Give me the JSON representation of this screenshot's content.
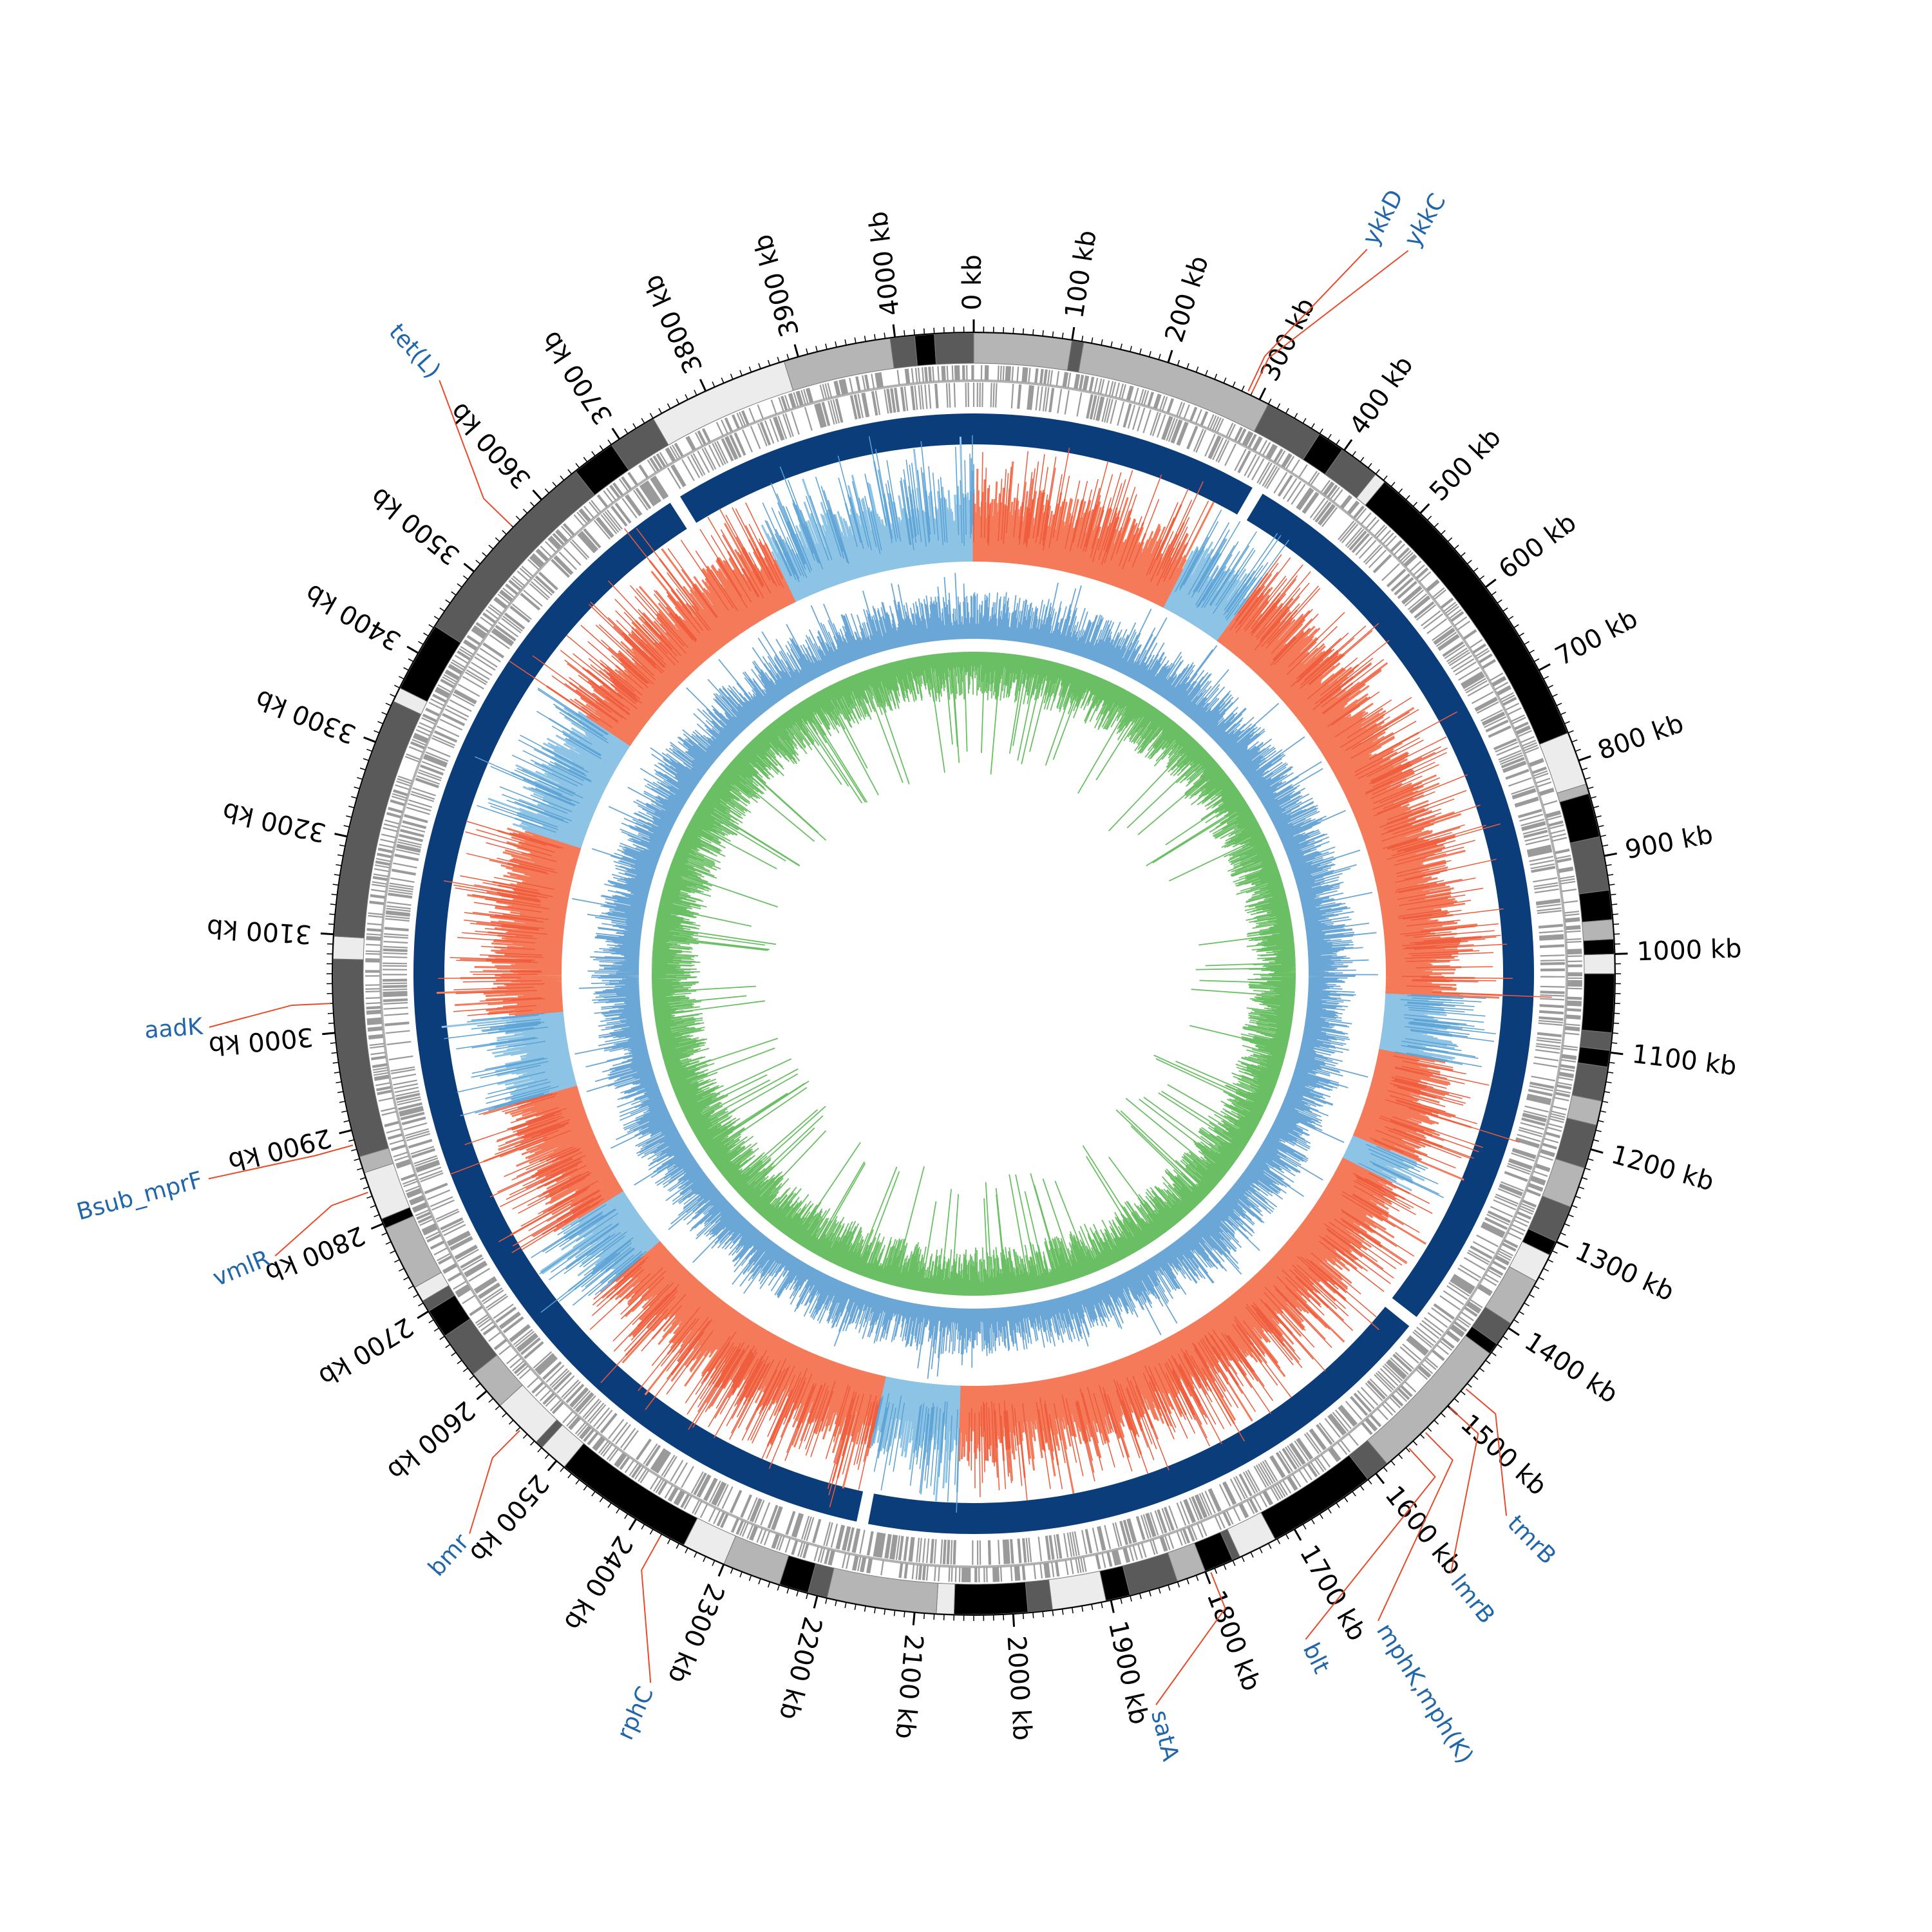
{
  "chart_data": {
    "type": "circular-genome-map",
    "genome_length_kb": 4080,
    "colors": {
      "contig_shades": [
        "#000000",
        "#5a5a5a",
        "#b5b5b5",
        "#ececec"
      ],
      "gene_track": "#9a9a9a",
      "backbone": "#0b3d7a",
      "skew_positive": "#f47a5a",
      "skew_negative": "#8dc4e6",
      "gc_outer": "#6aa6d6",
      "gc_inner": "#6abf64",
      "label_line": "#e84a2a",
      "label_text": "#2266aa",
      "tick": "#000000"
    },
    "tick_labels": [
      "0 kb",
      "100 kb",
      "200 kb",
      "300 kb",
      "400 kb",
      "500 kb",
      "600 kb",
      "700 kb",
      "800 kb",
      "900 kb",
      "1000 kb",
      "1100 kb",
      "1200 kb",
      "1300 kb",
      "1400 kb",
      "1500 kb",
      "1600 kb",
      "1700 kb",
      "1800 kb",
      "1900 kb",
      "2000 kb",
      "2100 kb",
      "2200 kb",
      "2300 kb",
      "2400 kb",
      "2500 kb",
      "2600 kb",
      "2700 kb",
      "2800 kb",
      "2900 kb",
      "3000 kb",
      "3100 kb",
      "3200 kb",
      "3300 kb",
      "3400 kb",
      "3500 kb",
      "3600 kb",
      "3700 kb",
      "3800 kb",
      "3900 kb",
      "4000 kb"
    ],
    "contigs": [
      {
        "start": 0,
        "end": 100,
        "shade": 2
      },
      {
        "start": 100,
        "end": 112,
        "shade": 1
      },
      {
        "start": 112,
        "end": 310,
        "shade": 2
      },
      {
        "start": 310,
        "end": 370,
        "shade": 1
      },
      {
        "start": 370,
        "end": 398,
        "shade": 0
      },
      {
        "start": 398,
        "end": 440,
        "shade": 1
      },
      {
        "start": 440,
        "end": 452,
        "shade": 3
      },
      {
        "start": 452,
        "end": 770,
        "shade": 0
      },
      {
        "start": 770,
        "end": 825,
        "shade": 3
      },
      {
        "start": 825,
        "end": 835,
        "shade": 2
      },
      {
        "start": 835,
        "end": 880,
        "shade": 0
      },
      {
        "start": 880,
        "end": 935,
        "shade": 1
      },
      {
        "start": 935,
        "end": 965,
        "shade": 0
      },
      {
        "start": 965,
        "end": 985,
        "shade": 2
      },
      {
        "start": 985,
        "end": 1000,
        "shade": 0
      },
      {
        "start": 1000,
        "end": 1020,
        "shade": 3
      },
      {
        "start": 1020,
        "end": 1080,
        "shade": 0
      },
      {
        "start": 1080,
        "end": 1098,
        "shade": 1
      },
      {
        "start": 1098,
        "end": 1115,
        "shade": 0
      },
      {
        "start": 1115,
        "end": 1150,
        "shade": 1
      },
      {
        "start": 1150,
        "end": 1175,
        "shade": 2
      },
      {
        "start": 1175,
        "end": 1220,
        "shade": 1
      },
      {
        "start": 1220,
        "end": 1262,
        "shade": 2
      },
      {
        "start": 1262,
        "end": 1300,
        "shade": 1
      },
      {
        "start": 1300,
        "end": 1315,
        "shade": 0
      },
      {
        "start": 1315,
        "end": 1345,
        "shade": 3
      },
      {
        "start": 1345,
        "end": 1395,
        "shade": 2
      },
      {
        "start": 1395,
        "end": 1420,
        "shade": 1
      },
      {
        "start": 1420,
        "end": 1432,
        "shade": 0
      },
      {
        "start": 1432,
        "end": 1585,
        "shade": 2
      },
      {
        "start": 1585,
        "end": 1610,
        "shade": 1
      },
      {
        "start": 1610,
        "end": 1722,
        "shade": 0
      },
      {
        "start": 1722,
        "end": 1762,
        "shade": 3
      },
      {
        "start": 1762,
        "end": 1770,
        "shade": 1
      },
      {
        "start": 1770,
        "end": 1800,
        "shade": 0
      },
      {
        "start": 1800,
        "end": 1830,
        "shade": 2
      },
      {
        "start": 1830,
        "end": 1880,
        "shade": 1
      },
      {
        "start": 1880,
        "end": 1905,
        "shade": 0
      },
      {
        "start": 1905,
        "end": 1960,
        "shade": 3
      },
      {
        "start": 1960,
        "end": 1985,
        "shade": 1
      },
      {
        "start": 1985,
        "end": 2060,
        "shade": 0
      },
      {
        "start": 2060,
        "end": 2078,
        "shade": 3
      },
      {
        "start": 2078,
        "end": 2190,
        "shade": 2
      },
      {
        "start": 2190,
        "end": 2210,
        "shade": 1
      },
      {
        "start": 2210,
        "end": 2240,
        "shade": 0
      },
      {
        "start": 2240,
        "end": 2300,
        "shade": 2
      },
      {
        "start": 2300,
        "end": 2345,
        "shade": 3
      },
      {
        "start": 2345,
        "end": 2490,
        "shade": 0
      },
      {
        "start": 2490,
        "end": 2520,
        "shade": 3
      },
      {
        "start": 2520,
        "end": 2528,
        "shade": 1
      },
      {
        "start": 2528,
        "end": 2580,
        "shade": 3
      },
      {
        "start": 2580,
        "end": 2622,
        "shade": 2
      },
      {
        "start": 2622,
        "end": 2670,
        "shade": 1
      },
      {
        "start": 2670,
        "end": 2700,
        "shade": 0
      },
      {
        "start": 2700,
        "end": 2712,
        "shade": 1
      },
      {
        "start": 2712,
        "end": 2728,
        "shade": 3
      },
      {
        "start": 2728,
        "end": 2795,
        "shade": 2
      },
      {
        "start": 2795,
        "end": 2805,
        "shade": 0
      },
      {
        "start": 2805,
        "end": 2855,
        "shade": 3
      },
      {
        "start": 2855,
        "end": 2872,
        "shade": 2
      },
      {
        "start": 2872,
        "end": 3075,
        "shade": 1
      },
      {
        "start": 3075,
        "end": 3098,
        "shade": 3
      },
      {
        "start": 3098,
        "end": 3345,
        "shade": 1
      },
      {
        "start": 3345,
        "end": 3360,
        "shade": 3
      },
      {
        "start": 3360,
        "end": 3432,
        "shade": 0
      },
      {
        "start": 3432,
        "end": 3645,
        "shade": 1
      },
      {
        "start": 3645,
        "end": 3690,
        "shade": 0
      },
      {
        "start": 3690,
        "end": 3740,
        "shade": 1
      },
      {
        "start": 3740,
        "end": 3885,
        "shade": 3
      },
      {
        "start": 3885,
        "end": 3995,
        "shade": 2
      },
      {
        "start": 3995,
        "end": 4020,
        "shade": 1
      },
      {
        "start": 4020,
        "end": 4040,
        "shade": 0
      },
      {
        "start": 4040,
        "end": 4080,
        "shade": 1
      }
    ],
    "backbone_gaps_kb": [
      345,
      1455,
      3715,
      2170
    ],
    "skew_positive_regions": [
      {
        "start": 0,
        "end": 310
      },
      {
        "start": 410,
        "end": 1050
      },
      {
        "start": 1140,
        "end": 1280
      },
      {
        "start": 1320,
        "end": 2060
      },
      {
        "start": 2180,
        "end": 2600
      },
      {
        "start": 2700,
        "end": 2880
      },
      {
        "start": 3000,
        "end": 3260
      },
      {
        "start": 3440,
        "end": 3790
      }
    ],
    "annotated_genes": [
      {
        "label": "ykkD",
        "kb": 286
      },
      {
        "label": "ykkC",
        "kb": 290
      },
      {
        "label": "tmrB",
        "kb": 1475
      },
      {
        "label": "lmrB",
        "kb": 1500
      },
      {
        "label": "mphK,mph(K)",
        "kb": 1535
      },
      {
        "label": "blt",
        "kb": 1558
      },
      {
        "label": "satA",
        "kb": 1795
      },
      {
        "label": "rphC",
        "kb": 2370
      },
      {
        "label": "bmr",
        "kb": 2548
      },
      {
        "label": "vmlR",
        "kb": 2835
      },
      {
        "label": "Bsub_mprF",
        "kb": 2885
      },
      {
        "label": "aadK",
        "kb": 3030
      },
      {
        "label": "tet(L)",
        "kb": 3560
      }
    ]
  }
}
